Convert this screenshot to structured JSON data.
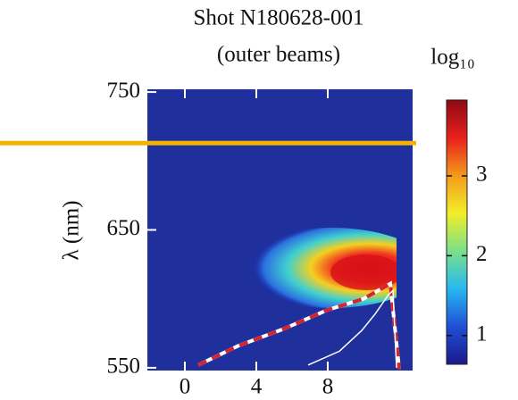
{
  "chart_data": {
    "type": "heatmap",
    "title": "Shot N180628-001",
    "subtitle": "(outer beams)",
    "ylabel": "λ (nm)",
    "colorbar_label": "log₁₀",
    "xlim": [
      -2.1,
      12.75
    ],
    "xticks": [
      0,
      4,
      8
    ],
    "ylim": [
      548,
      752
    ],
    "yticks": [
      550,
      650,
      750
    ],
    "clim": [
      0.64,
      3.95
    ],
    "cticks": [
      1,
      2,
      3
    ],
    "colormap": [
      "#1a1a8c",
      "#1f4fd6",
      "#27b8f0",
      "#7ae08a",
      "#f2ee2a",
      "#f39a1c",
      "#e8201c",
      "#8c0a14"
    ],
    "hline": {
      "value": 713,
      "color": "#f2b400"
    },
    "series": [
      {
        "color": "#d9222a",
        "dash": true,
        "x": [
          0.75,
          3,
          5.5,
          8,
          10,
          11.5,
          12
        ],
        "y": [
          552,
          566,
          578,
          592,
          600,
          611,
          549
        ]
      },
      {
        "color": "#ffffff",
        "dash": false,
        "x": [
          6.9,
          8.65,
          9.9,
          10.65,
          11.4,
          11.65,
          11.85
        ],
        "y": [
          552,
          562,
          577,
          589,
          603,
          606,
          550
        ]
      }
    ]
  }
}
